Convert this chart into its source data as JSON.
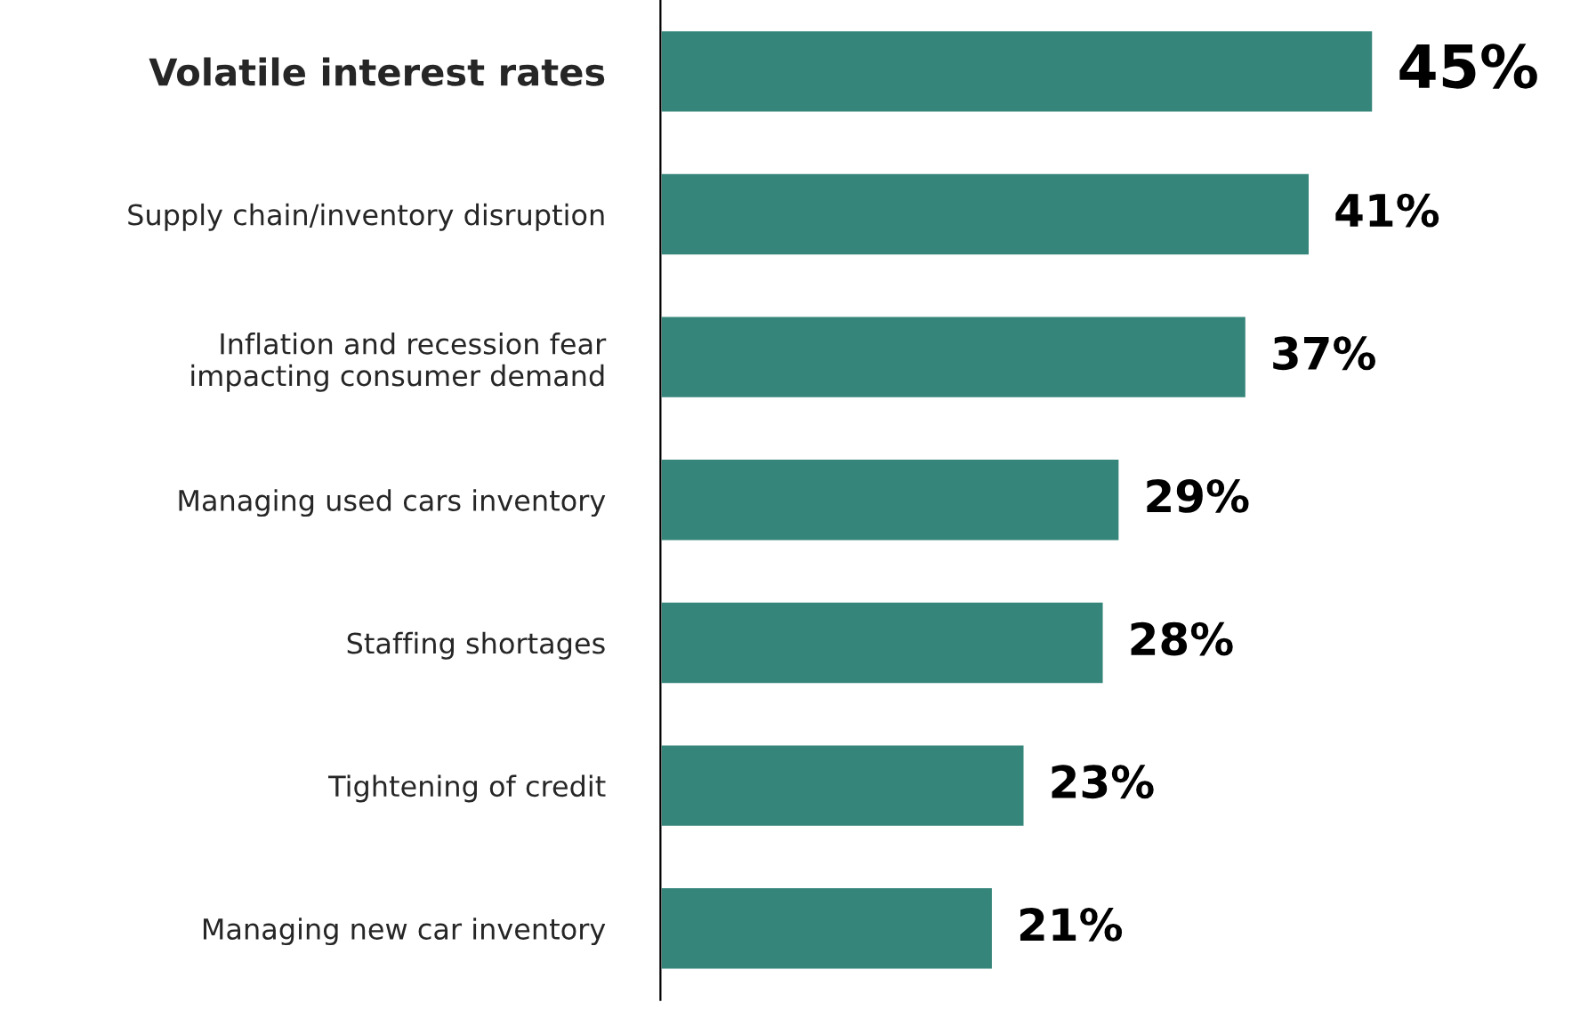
{
  "chart_data": {
    "type": "bar",
    "orientation": "horizontal",
    "categories": [
      "Volatile interest rates",
      "Supply chain/inventory disruption",
      "Inflation and recession fear\nimpacting consumer demand",
      "Managing used cars inventory",
      "Staffing shortages",
      "Tightening of credit",
      "Managing new car inventory"
    ],
    "values": [
      45,
      41,
      37,
      29,
      28,
      23,
      21
    ],
    "color": "#35857a",
    "value_labels": [
      "45%",
      "41%",
      "37%",
      "29%",
      "28%",
      "23%",
      "21%"
    ],
    "grid": false,
    "legend": false
  }
}
